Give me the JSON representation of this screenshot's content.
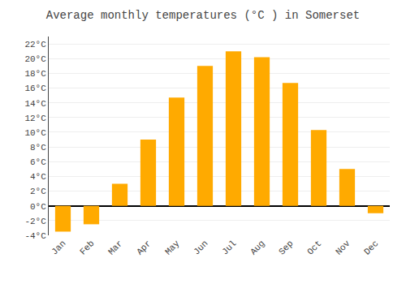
{
  "chart_data": {
    "type": "bar",
    "title": "Average monthly temperatures (°C ) in Somerset",
    "categories": [
      "Jan",
      "Feb",
      "Mar",
      "Apr",
      "May",
      "Jun",
      "Jul",
      "Aug",
      "Sep",
      "Oct",
      "Nov",
      "Dec"
    ],
    "values": [
      -3.5,
      -2.5,
      3.0,
      9.0,
      14.7,
      19.0,
      21.0,
      20.2,
      16.7,
      10.3,
      5.0,
      -1.0
    ],
    "color": "#FFAA00",
    "ylim": [
      -4,
      23
    ],
    "yticks": [
      {
        "value": -4,
        "label": "-4°C"
      },
      {
        "value": -2,
        "label": "-2°C"
      },
      {
        "value": 0,
        "label": "0°C"
      },
      {
        "value": 2,
        "label": "2°C"
      },
      {
        "value": 4,
        "label": "4°C"
      },
      {
        "value": 6,
        "label": "6°C"
      },
      {
        "value": 8,
        "label": "8°C"
      },
      {
        "value": 10,
        "label": "10°C"
      },
      {
        "value": 12,
        "label": "12°C"
      },
      {
        "value": 14,
        "label": "14°C"
      },
      {
        "value": 16,
        "label": "16°C"
      },
      {
        "value": 18,
        "label": "18°C"
      },
      {
        "value": 20,
        "label": "20°C"
      },
      {
        "value": 22,
        "label": "22°C"
      }
    ],
    "grid": true
  }
}
